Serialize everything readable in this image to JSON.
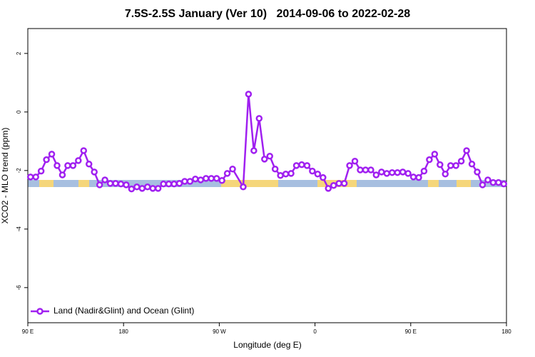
{
  "chart_data": {
    "type": "line",
    "title": "7.5S-2.5S January (Ver 10)   2014-09-06 to 2022-02-28",
    "x_label": "Longitude (deg E)",
    "y_label": "XCO2 - MLO trend (ppm)",
    "xlim": [
      90,
      540
    ],
    "ylim": [
      -7.2,
      2.85
    ],
    "xticks": [
      {
        "value": 90,
        "label": "90 E"
      },
      180,
      {
        "value": 270,
        "label": "90 W"
      },
      {
        "value": 360,
        "label": "0"
      },
      {
        "value": 450,
        "label": "90 E"
      },
      {
        "value": 540,
        "label": "180"
      }
    ],
    "yticks": [
      -6,
      -4,
      -2,
      0,
      2
    ],
    "legend": "bottom-left",
    "x": [
      92.5,
      97.5,
      102.5,
      107.5,
      112.5,
      117.5,
      122.5,
      127.5,
      132.5,
      137.5,
      142.5,
      147.5,
      152.5,
      157.5,
      162.5,
      167.5,
      172.5,
      177.5,
      182.5,
      187.5,
      192.5,
      197.5,
      202.5,
      207.5,
      212.5,
      217.5,
      222.5,
      227.5,
      232.5,
      237.5,
      242.5,
      247.5,
      252.5,
      257.5,
      262.5,
      267.5,
      272.5,
      277.5,
      282.5,
      292.5,
      297.5,
      302.5,
      307.5,
      312.5,
      317.5,
      322.5,
      327.5,
      332.5,
      337.5,
      342.5,
      347.5,
      352.5,
      357.5,
      362.5,
      367.5,
      372.5,
      377.5,
      382.5,
      387.5,
      392.5,
      397.5,
      402.5,
      407.5,
      412.5,
      417.5,
      422.5,
      427.5,
      432.5,
      437.5,
      442.5,
      447.5,
      452.5,
      457.5,
      462.5,
      467.5,
      472.5,
      477.5,
      482.5,
      487.5,
      492.5,
      497.5,
      502.5,
      507.5,
      512.5,
      517.5,
      522.5,
      527.5,
      532.5,
      537.5
    ],
    "series": [
      {
        "name": "Land (Nadir&Glint) and Ocean (Glint)",
        "color": "#a020f0",
        "values": [
          -2.22,
          -2.22,
          -2.02,
          -1.63,
          -1.44,
          -1.83,
          -2.15,
          -1.83,
          -1.83,
          -1.66,
          -1.32,
          -1.78,
          -2.05,
          -2.49,
          -2.32,
          -2.44,
          -2.44,
          -2.46,
          -2.49,
          -2.63,
          -2.56,
          -2.61,
          -2.56,
          -2.61,
          -2.61,
          -2.46,
          -2.46,
          -2.46,
          -2.44,
          -2.37,
          -2.37,
          -2.29,
          -2.32,
          -2.27,
          -2.27,
          -2.27,
          -2.34,
          -2.1,
          -1.95,
          -2.56,
          0.61,
          -1.32,
          -0.22,
          -1.61,
          -1.51,
          -1.95,
          -2.17,
          -2.12,
          -2.1,
          -1.83,
          -1.8,
          -1.83,
          -2.02,
          -2.12,
          -2.24,
          -2.61,
          -2.51,
          -2.44,
          -2.44,
          -1.83,
          -1.68,
          -1.98,
          -1.98,
          -1.98,
          -2.15,
          -2.05,
          -2.1,
          -2.07,
          -2.07,
          -2.05,
          -2.1,
          -2.22,
          -2.24,
          -2.02,
          -1.63,
          -1.44,
          -1.8,
          -2.12,
          -1.83,
          -1.83,
          -1.68,
          -1.32,
          -1.78,
          -2.05,
          -2.49,
          -2.32,
          -2.41,
          -2.41,
          -2.46
        ]
      }
    ]
  }
}
